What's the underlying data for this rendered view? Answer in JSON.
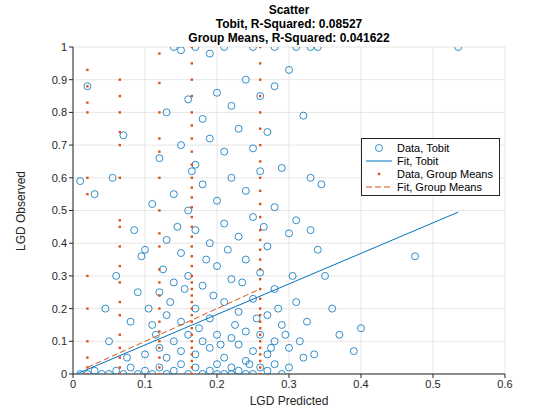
{
  "chart_data": {
    "type": "scatter",
    "title": "Scatter",
    "subtitle": [
      "Tobit, R-Squared: 0.08527",
      "Group Means, R-Squared: 0.041622"
    ],
    "x_label": "LGD Predicted",
    "y_label": "LGD Observed",
    "xlim": [
      0,
      0.6
    ],
    "xticks": [
      0,
      0.1,
      0.2,
      0.3,
      0.4,
      0.5,
      0.6
    ],
    "ylim": [
      0,
      1
    ],
    "yticks": [
      0,
      0.1,
      0.2,
      0.3,
      0.4,
      0.5,
      0.6,
      0.7,
      0.8,
      0.9,
      1
    ],
    "grid": true,
    "legend": "upper right",
    "series": [
      {
        "name": "Data, Tobit",
        "type": "scatter",
        "color": "#0072bd",
        "marker": "circle",
        "x": [
          0.01,
          0.02,
          0.03,
          0.04,
          0.05,
          0.06,
          0.07,
          0.08,
          0.09,
          0.1,
          0.11,
          0.12,
          0.13,
          0.14,
          0.15,
          0.16,
          0.17,
          0.18,
          0.19,
          0.2,
          0.21,
          0.22,
          0.23,
          0.24,
          0.25,
          0.26,
          0.27,
          0.28,
          0.29,
          0.3,
          0.13,
          0.15,
          0.17,
          0.19,
          0.21,
          0.23,
          0.25,
          0.27,
          0.18,
          0.2,
          0.22,
          0.24,
          0.16,
          0.14,
          0.12,
          0.1,
          0.26,
          0.28,
          0.3,
          0.32,
          0.11,
          0.13,
          0.15,
          0.17,
          0.19,
          0.21,
          0.23,
          0.25,
          0.27,
          0.29,
          0.12,
          0.14,
          0.16,
          0.18,
          0.2,
          0.22,
          0.24,
          0.26,
          0.28,
          0.31,
          0.1,
          0.13,
          0.15,
          0.17,
          0.19,
          0.21,
          0.23,
          0.25,
          0.27,
          0.3,
          0.11,
          0.14,
          0.16,
          0.18,
          0.2,
          0.22,
          0.24,
          0.26,
          0.28,
          0.31,
          0.12,
          0.15,
          0.17,
          0.19,
          0.21,
          0.23,
          0.25,
          0.27,
          0.29,
          0.33,
          0.13,
          0.16,
          0.18,
          0.2,
          0.22,
          0.24,
          0.26,
          0.28,
          0.3,
          0.32,
          0.14,
          0.15,
          0.17,
          0.19,
          0.21,
          0.25,
          0.28,
          0.31,
          0.33,
          0.34,
          0.535,
          0.475,
          0.4,
          0.39,
          0.37,
          0.36,
          0.35,
          0.34,
          0.33,
          0.345,
          0.01,
          0.02,
          0.03,
          0.045,
          0.05,
          0.06,
          0.07,
          0.08,
          0.09,
          0.055,
          0.085,
          0.095,
          0.075,
          0.105,
          0.115,
          0.125,
          0.135,
          0.145,
          0.155,
          0.165,
          0.175,
          0.185,
          0.195,
          0.205,
          0.215,
          0.225,
          0.235,
          0.245,
          0.255,
          0.265,
          0.275,
          0.285,
          0.295,
          0.305,
          0.315,
          0.325,
          0.335,
          0.2,
          0.22,
          0.24
        ],
        "values": [
          0,
          0,
          0.01,
          0,
          0,
          0.01,
          0,
          0.02,
          0,
          0.01,
          0,
          0.02,
          0,
          0.01,
          0.03,
          0,
          0.02,
          0,
          0.01,
          0.03,
          0,
          0.02,
          0.01,
          0.04,
          0,
          0.02,
          0.01,
          0.03,
          0,
          0.02,
          0.05,
          0.07,
          0.06,
          0.08,
          0.05,
          0.09,
          0.07,
          0.06,
          0.1,
          0.12,
          0.11,
          0.13,
          0.12,
          0.1,
          0.08,
          0.06,
          0.12,
          0.1,
          0.08,
          0.05,
          0.15,
          0.18,
          0.16,
          0.2,
          0.17,
          0.22,
          0.19,
          0.23,
          0.18,
          0.15,
          0.25,
          0.28,
          0.3,
          0.27,
          0.33,
          0.29,
          0.35,
          0.31,
          0.26,
          0.22,
          0.38,
          0.41,
          0.37,
          0.44,
          0.4,
          0.46,
          0.42,
          0.48,
          0.39,
          0.43,
          0.52,
          0.55,
          0.5,
          0.58,
          0.53,
          0.6,
          0.56,
          0.62,
          0.51,
          0.47,
          0.66,
          0.7,
          0.64,
          0.72,
          0.68,
          0.75,
          0.69,
          0.74,
          0.63,
          0.6,
          0.8,
          0.84,
          0.78,
          0.86,
          0.82,
          0.9,
          0.85,
          0.88,
          0.93,
          0.79,
          1,
          0.99,
          1,
          0.98,
          1,
          1,
          1,
          1,
          1,
          1,
          1,
          0.36,
          0.14,
          0.07,
          0.12,
          0.2,
          0.3,
          0.38,
          0.44,
          0.58,
          0.59,
          0.88,
          0.55,
          0.2,
          0.1,
          0.3,
          0.73,
          0.16,
          0.25,
          0.6,
          0.44,
          0.36,
          0.05,
          0.2,
          0.12,
          0.32,
          0.22,
          0.45,
          0.26,
          0.62,
          0.14,
          0.35,
          0.24,
          0.09,
          0.38,
          0.15,
          0.28,
          0.03,
          0.17,
          0.45,
          0.08,
          0.2,
          0.12,
          0.3,
          0.1,
          0.16,
          0.06,
          0,
          0,
          0
        ]
      },
      {
        "name": "Fit, Tobit",
        "type": "line",
        "color": "#0072bd",
        "line_style": "solid",
        "x": [
          0.005,
          0.535
        ],
        "values": [
          0,
          0.495
        ]
      },
      {
        "name": "Data, Group Means",
        "type": "scatter",
        "color": "#d95319",
        "marker": "square",
        "x": [
          0.02,
          0.02,
          0.02,
          0.02,
          0.02,
          0.02,
          0.02,
          0.02,
          0.02,
          0.02,
          0.02,
          0.02,
          0.065,
          0.065,
          0.065,
          0.065,
          0.065,
          0.065,
          0.065,
          0.065,
          0.065,
          0.065,
          0.065,
          0.065,
          0.065,
          0.065,
          0.065,
          0.065,
          0.065,
          0.065,
          0.12,
          0.12,
          0.12,
          0.12,
          0.12,
          0.12,
          0.12,
          0.12,
          0.12,
          0.12,
          0.12,
          0.12,
          0.12,
          0.12,
          0.12,
          0.12,
          0.12,
          0.12,
          0.12,
          0.12,
          0.165,
          0.165,
          0.165,
          0.165,
          0.165,
          0.165,
          0.165,
          0.165,
          0.165,
          0.165,
          0.165,
          0.165,
          0.165,
          0.165,
          0.165,
          0.165,
          0.165,
          0.165,
          0.165,
          0.165,
          0.165,
          0.165,
          0.165,
          0.165,
          0.165,
          0.165,
          0.165,
          0.165,
          0.165,
          0.165,
          0.165,
          0.165,
          0.165,
          0.165,
          0.165,
          0.26,
          0.26,
          0.26,
          0.26,
          0.26,
          0.26,
          0.26,
          0.26,
          0.26,
          0.26,
          0.26,
          0.26,
          0.26,
          0.26,
          0.26,
          0.26,
          0.26,
          0.26,
          0.26,
          0.26,
          0.26,
          0.26,
          0.26,
          0.26,
          0.26,
          0.26,
          0.26,
          0.26,
          0.26,
          0.26,
          0.26
        ],
        "values": [
          0,
          0.02,
          0.05,
          0.1,
          0.2,
          0.3,
          0.55,
          0.6,
          0.8,
          0.83,
          0.88,
          0.93,
          0,
          0.02,
          0.05,
          0.08,
          0.12,
          0.18,
          0.22,
          0.28,
          0.33,
          0.39,
          0.45,
          0.47,
          0.6,
          0.7,
          0.74,
          0.8,
          0.85,
          0.9,
          0,
          0.02,
          0.05,
          0.08,
          0.1,
          0.13,
          0.16,
          0.2,
          0.24,
          0.28,
          0.32,
          0.39,
          0.43,
          0.5,
          0.6,
          0.68,
          0.72,
          0.8,
          0.89,
          0.98,
          0,
          0.02,
          0.04,
          0.06,
          0.08,
          0.1,
          0.12,
          0.14,
          0.16,
          0.18,
          0.2,
          0.22,
          0.24,
          0.26,
          0.28,
          0.3,
          0.33,
          0.36,
          0.39,
          0.42,
          0.45,
          0.48,
          0.51,
          0.54,
          0.57,
          0.6,
          0.64,
          0.68,
          0.72,
          0.76,
          0.8,
          0.85,
          0.9,
          0.95,
          1,
          0,
          0.02,
          0.04,
          0.06,
          0.08,
          0.1,
          0.12,
          0.14,
          0.16,
          0.18,
          0.2,
          0.23,
          0.26,
          0.29,
          0.32,
          0.35,
          0.38,
          0.41,
          0.44,
          0.48,
          0.52,
          0.56,
          0.6,
          0.65,
          0.7,
          0.75,
          0.8,
          0.85,
          0.9,
          0.95,
          1
        ]
      },
      {
        "name": "Fit, Group Means",
        "type": "line",
        "color": "#d95319",
        "line_style": "dashed",
        "x": [
          0.02,
          0.26
        ],
        "values": [
          0.02,
          0.26
        ]
      }
    ]
  }
}
